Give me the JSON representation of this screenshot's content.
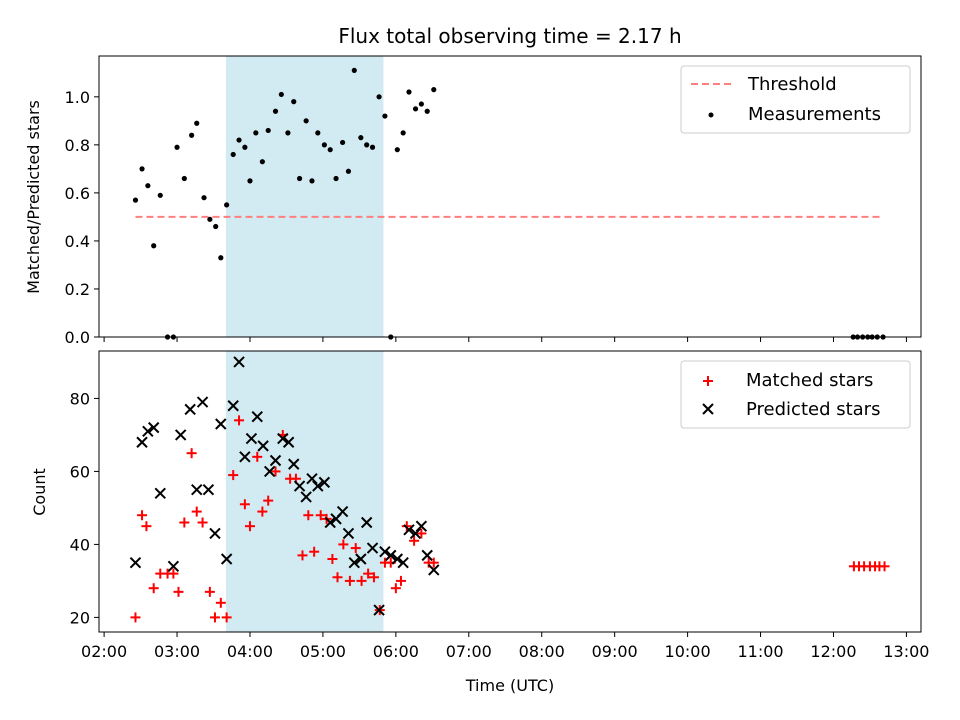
{
  "title": "Flux total observing time = 2.17 h",
  "xlabel": "Time (UTC)",
  "x_ticks": [
    "02:00",
    "03:00",
    "04:00",
    "05:00",
    "06:00",
    "07:00",
    "08:00",
    "09:00",
    "10:00",
    "11:00",
    "12:00",
    "13:00"
  ],
  "shaded_interval": {
    "start": 3.67,
    "end": 5.83,
    "color": "#add8e6"
  },
  "chart_data": [
    {
      "type": "scatter",
      "ylabel": "Matched/Predicted stars",
      "ylim": [
        0,
        1.17
      ],
      "y_ticks": [
        "0.0",
        "0.2",
        "0.4",
        "0.6",
        "0.8",
        "1.0"
      ],
      "legend": {
        "position": "top-right",
        "entries": [
          "Threshold",
          "Measurements"
        ]
      },
      "threshold": {
        "name": "Threshold",
        "y": 0.5,
        "x_range": [
          2.43,
          12.68
        ],
        "color": "#ff7f7f"
      },
      "series": [
        {
          "name": "Measurements",
          "color": "#000000",
          "x": [
            2.43,
            2.52,
            2.6,
            2.68,
            2.77,
            2.87,
            2.95,
            3.0,
            3.1,
            3.2,
            3.27,
            3.37,
            3.45,
            3.53,
            3.6,
            3.68,
            3.77,
            3.85,
            3.93,
            4.0,
            4.08,
            4.17,
            4.25,
            4.35,
            4.43,
            4.52,
            4.6,
            4.68,
            4.77,
            4.85,
            4.93,
            5.02,
            5.1,
            5.18,
            5.27,
            5.35,
            5.43,
            5.52,
            5.6,
            5.68,
            5.77,
            5.85,
            5.93,
            6.02,
            6.1,
            6.18,
            6.27,
            6.35,
            6.43,
            6.52,
            12.27,
            12.33,
            12.4,
            12.47,
            12.53,
            12.6,
            12.68
          ],
          "y": [
            0.57,
            0.7,
            0.63,
            0.38,
            0.59,
            0.0,
            0.0,
            0.79,
            0.66,
            0.84,
            0.89,
            0.58,
            0.49,
            0.46,
            0.33,
            0.55,
            0.76,
            0.82,
            0.79,
            0.65,
            0.85,
            0.73,
            0.86,
            0.94,
            1.01,
            0.85,
            0.98,
            0.66,
            0.9,
            0.65,
            0.85,
            0.8,
            0.78,
            0.66,
            0.81,
            0.69,
            1.11,
            0.83,
            0.8,
            0.79,
            1.0,
            0.92,
            0.0,
            0.78,
            0.85,
            1.02,
            0.95,
            0.97,
            0.94,
            1.03,
            0.0,
            0.0,
            0.0,
            0.0,
            0.0,
            0.0,
            0.0
          ]
        }
      ]
    },
    {
      "type": "scatter",
      "ylabel": "Count",
      "ylim": [
        16,
        93
      ],
      "y_ticks": [
        "20",
        "40",
        "60",
        "80"
      ],
      "legend": {
        "position": "top-right",
        "entries": [
          "Matched stars",
          "Predicted stars"
        ]
      },
      "series": [
        {
          "name": "Matched stars",
          "marker": "plus",
          "color": "#ff0000",
          "x": [
            2.43,
            2.52,
            2.58,
            2.68,
            2.77,
            2.87,
            2.95,
            3.02,
            3.1,
            3.2,
            3.27,
            3.35,
            3.45,
            3.52,
            3.6,
            3.68,
            3.77,
            3.85,
            3.93,
            4.0,
            4.1,
            4.17,
            4.25,
            4.35,
            4.45,
            4.55,
            4.63,
            4.72,
            4.8,
            4.88,
            4.97,
            5.05,
            5.13,
            5.2,
            5.28,
            5.37,
            5.45,
            5.53,
            5.62,
            5.7,
            5.78,
            5.85,
            5.93,
            6.0,
            6.07,
            6.15,
            6.25,
            6.35,
            6.45,
            6.52,
            12.28,
            12.35,
            12.42,
            12.5,
            12.57,
            12.63,
            12.7
          ],
          "y": [
            20,
            48,
            45,
            28,
            32,
            32,
            32,
            27,
            46,
            65,
            49,
            46,
            27,
            20,
            24,
            20,
            59,
            74,
            51,
            45,
            64,
            49,
            52,
            60,
            70,
            58,
            58,
            37,
            48,
            38,
            48,
            47,
            36,
            31,
            40,
            30,
            39,
            30,
            32,
            31,
            22,
            35,
            35,
            28,
            30,
            45,
            41,
            43,
            35,
            35,
            34,
            34,
            34,
            34,
            34,
            34,
            34
          ]
        },
        {
          "name": "Predicted stars",
          "marker": "x",
          "color": "#000000",
          "x": [
            2.43,
            2.52,
            2.6,
            2.68,
            2.77,
            2.95,
            3.05,
            3.18,
            3.27,
            3.35,
            3.43,
            3.52,
            3.6,
            3.68,
            3.77,
            3.85,
            3.93,
            4.02,
            4.1,
            4.18,
            4.27,
            4.35,
            4.45,
            4.53,
            4.6,
            4.68,
            4.77,
            4.85,
            4.93,
            5.02,
            5.1,
            5.18,
            5.27,
            5.35,
            5.43,
            5.52,
            5.6,
            5.68,
            5.77,
            5.85,
            5.93,
            6.02,
            6.1,
            6.18,
            6.27,
            6.35,
            6.43,
            6.52
          ],
          "y": [
            35,
            68,
            71,
            72,
            54,
            34,
            70,
            77,
            55,
            79,
            55,
            43,
            73,
            36,
            78,
            90,
            64,
            69,
            75,
            67,
            60,
            63,
            69,
            68,
            62,
            56,
            53,
            58,
            56,
            57,
            46,
            47,
            49,
            43,
            35,
            36,
            46,
            39,
            22,
            38,
            37,
            36,
            35,
            44,
            43,
            45,
            37,
            33
          ]
        }
      ]
    }
  ]
}
